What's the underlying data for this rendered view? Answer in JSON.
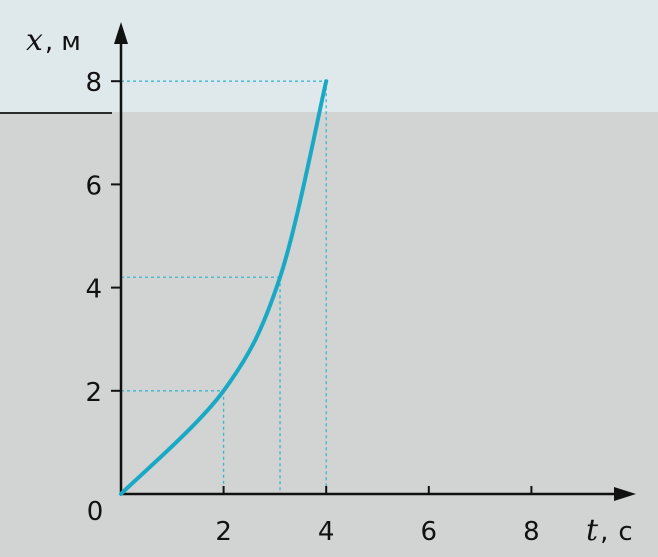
{
  "chart_data": {
    "type": "line",
    "xlabel": "t, с",
    "ylabel": "x, м",
    "xlabel_var": "t",
    "xlabel_unit": "с",
    "ylabel_var": "x",
    "ylabel_unit": "м",
    "origin_label": "0",
    "xlim": [
      0,
      9
    ],
    "ylim": [
      0,
      8.5
    ],
    "x_ticks": [
      "2",
      "4",
      "6",
      "8"
    ],
    "y_ticks": [
      "2",
      "4",
      "6",
      "8"
    ],
    "grid": false,
    "series": [
      {
        "x": [
          0,
          0.5,
          1,
          1.5,
          2,
          2.5,
          3,
          3.5,
          4
        ],
        "y": [
          0,
          0.31,
          0.75,
          1.31,
          2,
          2.81,
          3.75,
          4.81,
          8
        ],
        "color": "#1aa9c4"
      }
    ],
    "guides": [
      {
        "x": 2,
        "y": 2
      },
      {
        "x": 3.1,
        "y": 4.2
      },
      {
        "x": 4,
        "y": 8
      }
    ]
  },
  "colors": {
    "background": "#d2d3d3",
    "curve": "#1aa9c4",
    "guides": "#3bb6cf",
    "axes": "#111111"
  }
}
